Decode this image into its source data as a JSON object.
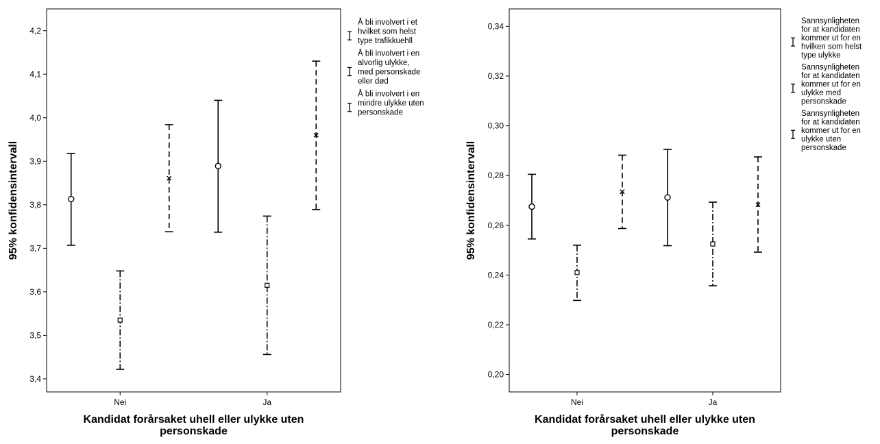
{
  "chart_data": [
    {
      "type": "errorbar",
      "ylabel": "95% konfidensintervall",
      "xlabel_lines": [
        "Kandidat forårsaket uhell eller ulykke uten",
        "personskade"
      ],
      "categories": [
        "Nei",
        "Ja"
      ],
      "ylim": [
        3.37,
        4.25
      ],
      "yticks": [
        "3,4",
        "3,5",
        "3,6",
        "3,7",
        "3,8",
        "3,9",
        "4,0",
        "4,1",
        "4,2"
      ],
      "ytick_values": [
        3.4,
        3.5,
        3.6,
        3.7,
        3.8,
        3.9,
        4.0,
        4.1,
        4.2
      ],
      "series": [
        {
          "name_lines": [
            "Å bli involvert i et",
            "hvilket som helst",
            "type trafikkuehll"
          ],
          "marker": "circle",
          "dash": "solid",
          "points": [
            {
              "mean": 3.813,
              "lower": 3.707,
              "upper": 3.918
            },
            {
              "mean": 3.889,
              "lower": 3.737,
              "upper": 4.04
            }
          ]
        },
        {
          "name_lines": [
            "Å bli involvert i en",
            "alvorlig ulykke,",
            "med personskade",
            "eller død"
          ],
          "marker": "square",
          "dash": "dashdot",
          "points": [
            {
              "mean": 3.535,
              "lower": 3.422,
              "upper": 3.648
            },
            {
              "mean": 3.615,
              "lower": 3.456,
              "upper": 3.774
            }
          ]
        },
        {
          "name_lines": [
            "Å bli involvert i en",
            "mindre ulykke uten",
            "personskade"
          ],
          "marker": "x",
          "dash": "dashed",
          "points": [
            {
              "mean": 3.861,
              "lower": 3.738,
              "upper": 3.984
            },
            {
              "mean": 3.96,
              "lower": 3.789,
              "upper": 4.13
            }
          ]
        }
      ]
    },
    {
      "type": "errorbar",
      "ylabel": "95% konfidensintervall",
      "xlabel_lines": [
        "Kandidat forårsaket uhell eller ulykke uten",
        "personskade"
      ],
      "categories": [
        "Nei",
        "Ja"
      ],
      "ylim": [
        0.193,
        0.347
      ],
      "yticks": [
        "0,20",
        "0,22",
        "0,24",
        "0,26",
        "0,28",
        "0,30",
        "0,32",
        "0,34"
      ],
      "ytick_values": [
        0.2,
        0.22,
        0.24,
        0.26,
        0.28,
        0.3,
        0.32,
        0.34
      ],
      "series": [
        {
          "name_lines": [
            "Sannsynligheten",
            "for at kandidaten",
            "kommer ut for en",
            "hvilken som helst",
            "type ulykke"
          ],
          "marker": "circle",
          "dash": "solid",
          "points": [
            {
              "mean": 0.2675,
              "lower": 0.2545,
              "upper": 0.2805
            },
            {
              "mean": 0.2712,
              "lower": 0.2518,
              "upper": 0.2905
            }
          ]
        },
        {
          "name_lines": [
            "Sannsynligheten",
            "for at kandidaten",
            "kommer ut for en",
            "ulykke med",
            "personskade"
          ],
          "marker": "square",
          "dash": "dashdot",
          "points": [
            {
              "mean": 0.241,
              "lower": 0.2298,
              "upper": 0.252
            },
            {
              "mean": 0.2525,
              "lower": 0.2357,
              "upper": 0.2693
            }
          ]
        },
        {
          "name_lines": [
            "Sannsynligheten",
            "for at kandidaten",
            "kommer ut for en",
            "ulykke uten",
            "personskade"
          ],
          "marker": "x",
          "dash": "dashed",
          "points": [
            {
              "mean": 0.2735,
              "lower": 0.2587,
              "upper": 0.2882
            },
            {
              "mean": 0.2683,
              "lower": 0.2492,
              "upper": 0.2875
            }
          ]
        }
      ]
    }
  ]
}
